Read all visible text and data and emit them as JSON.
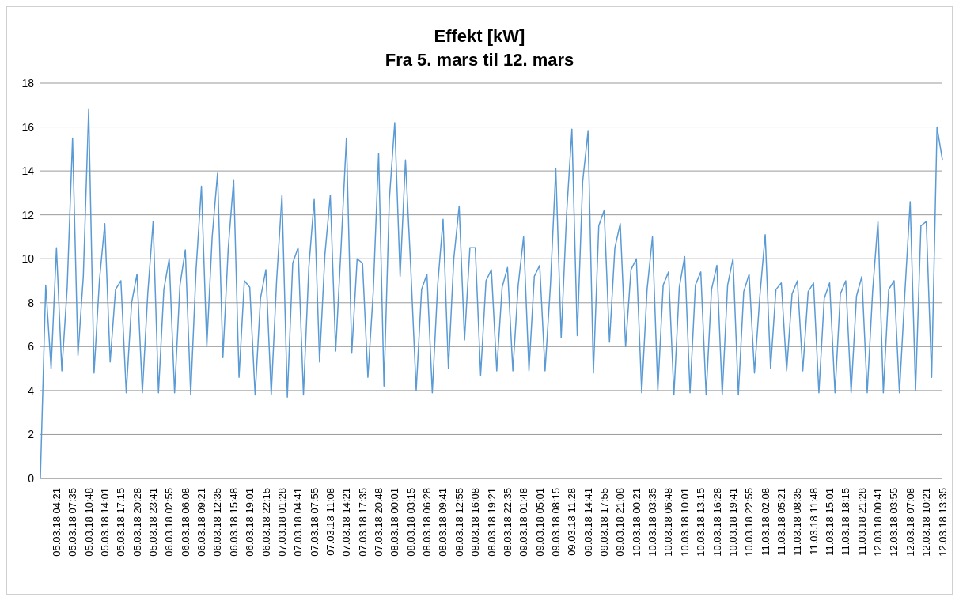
{
  "chart_data": {
    "type": "line",
    "title": "Effekt [kW]",
    "subtitle": "Fra 5. mars til 12. mars",
    "categories": [
      null,
      null,
      null,
      "05.03.18 04:21",
      null,
      null,
      "05.03.18 07:35",
      null,
      null,
      "05.03.18 10:48",
      null,
      null,
      "05.03.18 14:01",
      null,
      null,
      "05.03.18 17:15",
      null,
      null,
      "05.03.18 20:28",
      null,
      null,
      "05.03.18 23:41",
      null,
      null,
      "06.03.18 02:55",
      null,
      null,
      "06.03.18 06:08",
      null,
      null,
      "06.03.18 09:21",
      null,
      null,
      "06.03.18 12:35",
      null,
      null,
      "06.03.18 15:48",
      null,
      null,
      "06.03.18 19:01",
      null,
      null,
      "06.03.18 22:15",
      null,
      null,
      "07.03.18 01:28",
      null,
      null,
      "07.03.18 04:41",
      null,
      null,
      "07.03.18 07:55",
      null,
      null,
      "07.03.18 11:08",
      null,
      null,
      "07.03.18 14:21",
      null,
      null,
      "07.03.18 17:35",
      null,
      null,
      "07.03.18 20:48",
      null,
      null,
      "08.03.18 00:01",
      null,
      null,
      "08.03.18 03:15",
      null,
      null,
      "08.03.18 06:28",
      null,
      null,
      "08.03.18 09:41",
      null,
      null,
      "08.03.18 12:55",
      null,
      null,
      "08.03.18 16:08",
      null,
      null,
      "08.03.18 19:21",
      null,
      null,
      "08.03.18 22:35",
      null,
      null,
      "09.03.18 01:48",
      null,
      null,
      "09.03.18 05:01",
      null,
      null,
      "09.03.18 08:15",
      null,
      null,
      "09.03.18 11:28",
      null,
      null,
      "09.03.18 14:41",
      null,
      null,
      "09.03.18 17:55",
      null,
      null,
      "09.03.18 21:08",
      null,
      null,
      "10.03.18 00:21",
      null,
      null,
      "10.03.18 03:35",
      null,
      null,
      "10.03.18 06:48",
      null,
      null,
      "10.03.18 10:01",
      null,
      null,
      "10.03.18 13:15",
      null,
      null,
      "10.03.18 16:28",
      null,
      null,
      "10.03.18 19:41",
      null,
      null,
      "10.03.18 22:55",
      null,
      null,
      "11.03.18 02:08",
      null,
      null,
      "11.03.18 05:21",
      null,
      null,
      "11.03.18 08:35",
      null,
      null,
      "11.03.18 11:48",
      null,
      null,
      "11.03.18 15:01",
      null,
      null,
      "11.03.18 18:15",
      null,
      null,
      "11.03.18 21:28",
      null,
      null,
      "12.03.18 00:41",
      null,
      null,
      "12.03.18 03:55",
      null,
      null,
      "12.03.18 07:08",
      null,
      null,
      "12.03.18 10:21",
      null,
      null,
      "12.03.18 13:35"
    ],
    "series": [
      {
        "color": "#5b9bd5",
        "values": [
          0,
          8.8,
          5.0,
          10.5,
          4.9,
          8.7,
          15.5,
          5.6,
          9.2,
          16.8,
          4.8,
          9.0,
          11.6,
          5.3,
          8.6,
          9.0,
          3.9,
          8.0,
          9.3,
          3.9,
          8.4,
          11.7,
          3.9,
          8.6,
          10.0,
          3.9,
          8.8,
          10.4,
          3.8,
          9.5,
          13.3,
          6.0,
          11.0,
          13.9,
          5.5,
          10.5,
          13.6,
          4.6,
          9.0,
          8.7,
          3.8,
          8.2,
          9.5,
          3.8,
          9.0,
          12.9,
          3.7,
          9.8,
          10.5,
          3.8,
          9.6,
          12.7,
          5.3,
          10.2,
          12.9,
          5.8,
          10.5,
          15.5,
          5.7,
          10.0,
          9.8,
          4.6,
          8.5,
          14.8,
          4.2,
          12.7,
          16.2,
          9.2,
          14.5,
          9.5,
          4.0,
          8.6,
          9.3,
          3.9,
          8.8,
          11.8,
          5.0,
          10.0,
          12.4,
          6.3,
          10.5,
          10.5,
          4.7,
          9.0,
          9.5,
          4.9,
          8.7,
          9.6,
          4.9,
          8.8,
          11.0,
          4.9,
          9.2,
          9.7,
          4.9,
          8.8,
          14.1,
          6.4,
          12.0,
          15.9,
          6.5,
          13.5,
          15.8,
          4.8,
          11.5,
          12.2,
          6.2,
          10.5,
          11.6,
          6.0,
          9.5,
          10.0,
          3.9,
          8.6,
          11.0,
          4.0,
          8.8,
          9.4,
          3.8,
          8.7,
          10.1,
          3.9,
          8.8,
          9.4,
          3.8,
          8.6,
          9.7,
          3.8,
          8.8,
          10.0,
          3.8,
          8.5,
          9.3,
          4.8,
          8.3,
          11.1,
          5.0,
          8.6,
          8.9,
          4.9,
          8.4,
          9.0,
          4.9,
          8.5,
          8.9,
          3.9,
          8.2,
          8.9,
          3.9,
          8.4,
          9.0,
          3.9,
          8.3,
          9.2,
          3.9,
          8.5,
          11.7,
          3.9,
          8.6,
          9.0,
          3.9,
          8.4,
          12.6,
          4.0,
          11.5,
          11.7,
          4.6,
          16.0,
          14.5
        ]
      }
    ],
    "ylim": [
      0,
      18
    ],
    "yticks": [
      0,
      2,
      4,
      6,
      8,
      10,
      12,
      14,
      16,
      18
    ],
    "grid": "y",
    "legend": false,
    "marker": "none"
  }
}
